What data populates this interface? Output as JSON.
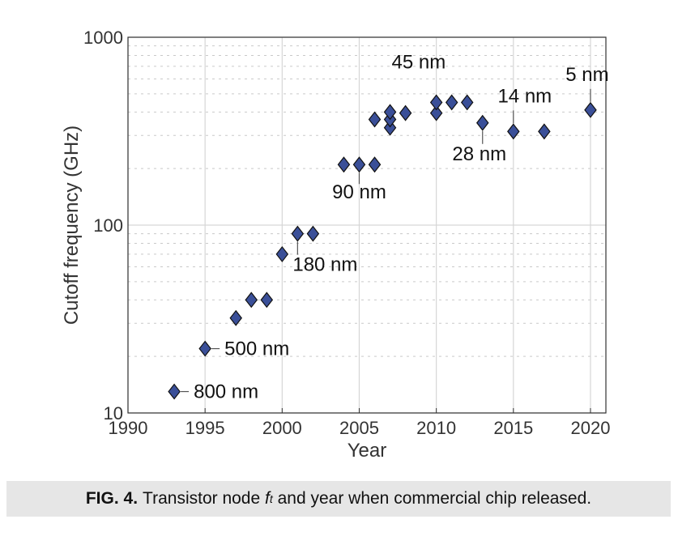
{
  "chart_data": {
    "type": "scatter",
    "title": "",
    "xlabel": "Year",
    "ylabel": "Cutoff frequency (GHz)",
    "xlim": [
      1990,
      2021
    ],
    "ylim": [
      10,
      1000
    ],
    "y_scale": "log",
    "grid": true,
    "marker": "diamond",
    "marker_color": "#3a4f98",
    "x_ticks": [
      1990,
      1995,
      2000,
      2005,
      2010,
      2015,
      2020
    ],
    "y_ticks": [
      10,
      100,
      1000
    ],
    "x_tick_labels": [
      "1990",
      "1995",
      "2000",
      "2005",
      "2010",
      "2015",
      "2020"
    ],
    "y_tick_labels": [
      "10",
      "100",
      "1000"
    ],
    "points": [
      {
        "x": 1993,
        "y": 13
      },
      {
        "x": 1995,
        "y": 22
      },
      {
        "x": 1997,
        "y": 32
      },
      {
        "x": 1998,
        "y": 40
      },
      {
        "x": 1999,
        "y": 40
      },
      {
        "x": 2000,
        "y": 70
      },
      {
        "x": 2001,
        "y": 90
      },
      {
        "x": 2002,
        "y": 90
      },
      {
        "x": 2004,
        "y": 210
      },
      {
        "x": 2005,
        "y": 210
      },
      {
        "x": 2006,
        "y": 210
      },
      {
        "x": 2006,
        "y": 365
      },
      {
        "x": 2007,
        "y": 330
      },
      {
        "x": 2007,
        "y": 365
      },
      {
        "x": 2007,
        "y": 400
      },
      {
        "x": 2008,
        "y": 395
      },
      {
        "x": 2010,
        "y": 395
      },
      {
        "x": 2010,
        "y": 450
      },
      {
        "x": 2011,
        "y": 450
      },
      {
        "x": 2012,
        "y": 450
      },
      {
        "x": 2013,
        "y": 350
      },
      {
        "x": 2015,
        "y": 315
      },
      {
        "x": 2017,
        "y": 315
      },
      {
        "x": 2020,
        "y": 410
      }
    ],
    "annotations": [
      {
        "text": "800 nm",
        "x": 1993,
        "y": 13
      },
      {
        "text": "500 nm",
        "x": 1995,
        "y": 22
      },
      {
        "text": "180 nm",
        "x": 2001,
        "y": 90
      },
      {
        "text": "90 nm",
        "x": 2005,
        "y": 210
      },
      {
        "text": "45 nm",
        "x": 2007,
        "y": 400
      },
      {
        "text": "28 nm",
        "x": 2013,
        "y": 350
      },
      {
        "text": "14 nm",
        "x": 2015,
        "y": 315
      },
      {
        "text": "5 nm",
        "x": 2020,
        "y": 410
      }
    ]
  },
  "caption": {
    "label": "FIG. 4.",
    "text_before": "Transistor node",
    "symbol": "f",
    "subscript": "t",
    "text_after": "and year when commercial chip released."
  }
}
